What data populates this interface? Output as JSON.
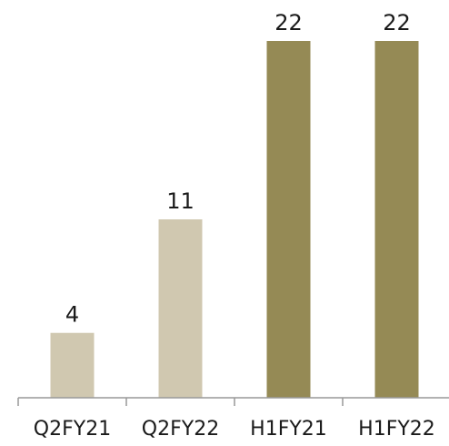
{
  "chart_data": {
    "type": "bar",
    "title": "",
    "xlabel": "",
    "ylabel": "",
    "categories": [
      "Q2FY21",
      "Q2FY22",
      "H1FY21",
      "H1FY22"
    ],
    "values": [
      4,
      11,
      22,
      22
    ],
    "data_labels": [
      "4",
      "11",
      "22",
      "22"
    ],
    "bar_colors": [
      "#d0c8b0",
      "#d0c8b0",
      "#958a55",
      "#958a55"
    ],
    "ylim": [
      0,
      22
    ],
    "grid": false,
    "legend": "none"
  }
}
